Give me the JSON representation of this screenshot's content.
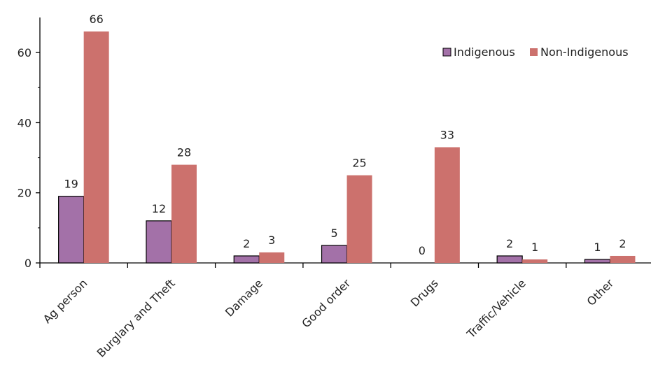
{
  "chart_data": {
    "type": "bar",
    "title": "",
    "xlabel": "",
    "ylabel": "",
    "categories": [
      "Ag person",
      "Burglary and Theft",
      "Damage",
      "Good order",
      "Drugs",
      "Traffic/Vehicle",
      "Other"
    ],
    "series": [
      {
        "name": "Indigenous",
        "values": [
          19,
          12,
          2,
          5,
          0,
          2,
          1
        ],
        "color": "#A371A8"
      },
      {
        "name": "Non-Indigenous",
        "values": [
          66,
          28,
          3,
          25,
          33,
          1,
          2
        ],
        "color": "#CC716D"
      }
    ],
    "ylim": [
      0,
      70
    ],
    "yticks": [
      0,
      20,
      40,
      60
    ],
    "grid": false,
    "legend_position": "top-right",
    "data_labels": true
  }
}
